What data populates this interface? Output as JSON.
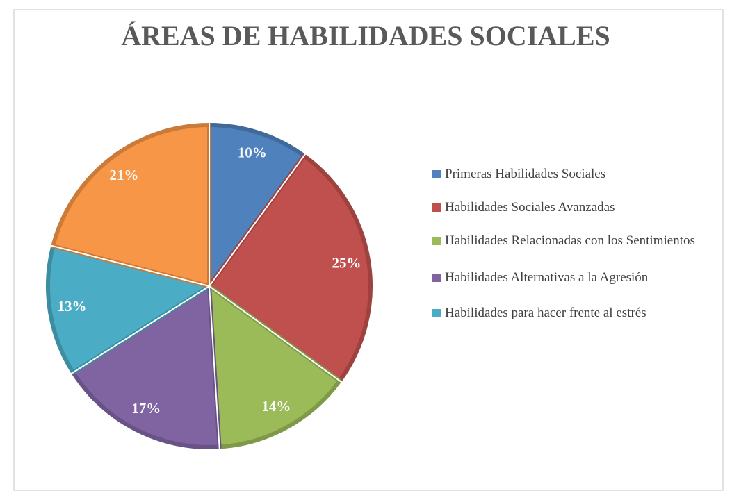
{
  "chart_data": {
    "type": "pie",
    "title": "ÁREAS DE HABILIDADES SOCIALES",
    "categories": [
      "Primeras Habilidades Sociales",
      "Habilidades Sociales Avanzadas",
      "Habilidades Relacionadas con los Sentimientos",
      "Habilidades Alternativas a la Agresión",
      "Habilidades para hacer frente al estrés",
      null
    ],
    "values": [
      10,
      25,
      14,
      17,
      13,
      21
    ],
    "value_labels": [
      "10%",
      "25%",
      "14%",
      "17%",
      "13%",
      "21%"
    ],
    "colors": [
      "#4f81bd",
      "#c0504d",
      "#9bbb59",
      "#8064a2",
      "#4bacc6",
      "#f79646"
    ],
    "legend": "right"
  }
}
